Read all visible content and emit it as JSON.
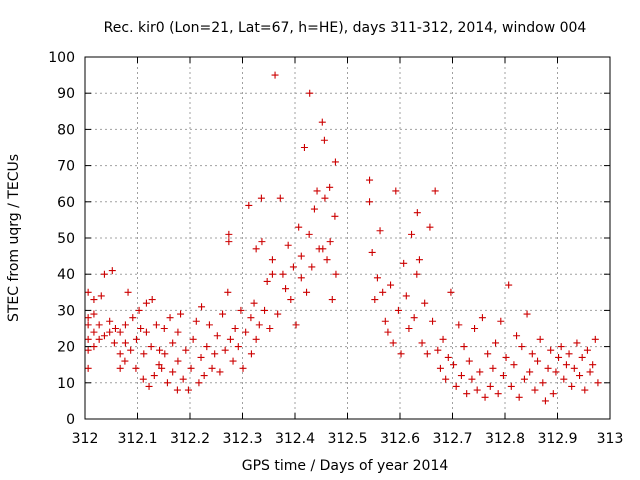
{
  "chart_data": {
    "type": "scatter",
    "title": "Rec. kir0 (Lon=21, Lat=67, h=HE), days 311-312, 2014, window 004",
    "xlabel": "GPS time / Days of year 2014",
    "ylabel": "STEC from uqrg / TECUs",
    "xlim": [
      312,
      313
    ],
    "ylim": [
      0,
      100
    ],
    "x_ticks": [
      312,
      312.1,
      312.2,
      312.3,
      312.4,
      312.5,
      312.6,
      312.7,
      312.8,
      312.9,
      313
    ],
    "x_tick_labels": [
      "312",
      "312.1",
      "312.2",
      "312.3",
      "312.4",
      "312.5",
      "312.6",
      "312.7",
      "312.8",
      "312.9",
      "313"
    ],
    "y_ticks": [
      0,
      10,
      20,
      30,
      40,
      50,
      60,
      70,
      80,
      90,
      100
    ],
    "y_tick_labels": [
      "0",
      "10",
      "20",
      "30",
      "40",
      "50",
      "60",
      "70",
      "80",
      "90",
      "100"
    ],
    "grid": true,
    "marker": "plus",
    "color": "#cc0000",
    "series": [
      {
        "points": [
          [
            312.006,
            14
          ],
          [
            312.006,
            19
          ],
          [
            312.006,
            22
          ],
          [
            312.006,
            26
          ],
          [
            312.006,
            28
          ],
          [
            312.006,
            35
          ],
          [
            312.017,
            20
          ],
          [
            312.017,
            24
          ],
          [
            312.017,
            29
          ],
          [
            312.017,
            33
          ],
          [
            312.027,
            22
          ],
          [
            312.027,
            26
          ],
          [
            312.031,
            34
          ],
          [
            312.037,
            23
          ],
          [
            312.037,
            40
          ],
          [
            312.047,
            24
          ],
          [
            312.047,
            27
          ],
          [
            312.052,
            41
          ],
          [
            312.056,
            21
          ],
          [
            312.058,
            25
          ],
          [
            312.067,
            14
          ],
          [
            312.067,
            18
          ],
          [
            312.067,
            24
          ],
          [
            312.076,
            16
          ],
          [
            312.077,
            21
          ],
          [
            312.077,
            26
          ],
          [
            312.082,
            35
          ],
          [
            312.087,
            19
          ],
          [
            312.091,
            28
          ],
          [
            312.097,
            14
          ],
          [
            312.098,
            22
          ],
          [
            312.103,
            30
          ],
          [
            312.106,
            25
          ],
          [
            312.111,
            11
          ],
          [
            312.112,
            18
          ],
          [
            312.117,
            24
          ],
          [
            312.117,
            32
          ],
          [
            312.122,
            9
          ],
          [
            312.126,
            20
          ],
          [
            312.128,
            33
          ],
          [
            312.132,
            12
          ],
          [
            312.136,
            26
          ],
          [
            312.141,
            15
          ],
          [
            312.142,
            19
          ],
          [
            312.146,
            14
          ],
          [
            312.151,
            25
          ],
          [
            312.152,
            18
          ],
          [
            312.157,
            10
          ],
          [
            312.162,
            28
          ],
          [
            312.167,
            13
          ],
          [
            312.167,
            21
          ],
          [
            312.176,
            8
          ],
          [
            312.177,
            16
          ],
          [
            312.177,
            24
          ],
          [
            312.182,
            29
          ],
          [
            312.187,
            11
          ],
          [
            312.192,
            19
          ],
          [
            312.197,
            8
          ],
          [
            312.202,
            14
          ],
          [
            312.206,
            22
          ],
          [
            312.212,
            27
          ],
          [
            312.217,
            10
          ],
          [
            312.221,
            17
          ],
          [
            312.222,
            31
          ],
          [
            312.227,
            12
          ],
          [
            312.232,
            20
          ],
          [
            312.237,
            26
          ],
          [
            312.242,
            14
          ],
          [
            312.247,
            18
          ],
          [
            312.252,
            23
          ],
          [
            312.257,
            13
          ],
          [
            312.262,
            29
          ],
          [
            312.267,
            19
          ],
          [
            312.272,
            35
          ],
          [
            312.274,
            49
          ],
          [
            312.274,
            51
          ],
          [
            312.277,
            22
          ],
          [
            312.282,
            16
          ],
          [
            312.286,
            25
          ],
          [
            312.292,
            20
          ],
          [
            312.297,
            30
          ],
          [
            312.301,
            14
          ],
          [
            312.306,
            24
          ],
          [
            312.312,
            59
          ],
          [
            312.316,
            28
          ],
          [
            312.317,
            18
          ],
          [
            312.322,
            32
          ],
          [
            312.326,
            47
          ],
          [
            312.326,
            22
          ],
          [
            312.332,
            26
          ],
          [
            312.336,
            61
          ],
          [
            312.337,
            49
          ],
          [
            312.342,
            30
          ],
          [
            312.347,
            38
          ],
          [
            312.352,
            25
          ],
          [
            312.357,
            44
          ],
          [
            312.357,
            40
          ],
          [
            312.362,
            95
          ],
          [
            312.367,
            29
          ],
          [
            312.372,
            61
          ],
          [
            312.377,
            40
          ],
          [
            312.382,
            36
          ],
          [
            312.387,
            48
          ],
          [
            312.392,
            33
          ],
          [
            312.397,
            42
          ],
          [
            312.402,
            26
          ],
          [
            312.407,
            53
          ],
          [
            312.412,
            45
          ],
          [
            312.412,
            39
          ],
          [
            312.418,
            75
          ],
          [
            312.422,
            35
          ],
          [
            312.427,
            51
          ],
          [
            312.428,
            90
          ],
          [
            312.432,
            42
          ],
          [
            312.437,
            58
          ],
          [
            312.442,
            63
          ],
          [
            312.446,
            47
          ],
          [
            312.452,
            82
          ],
          [
            312.453,
            47
          ],
          [
            312.456,
            77
          ],
          [
            312.457,
            61
          ],
          [
            312.461,
            44
          ],
          [
            312.466,
            64
          ],
          [
            312.467,
            49
          ],
          [
            312.471,
            33
          ],
          [
            312.476,
            56
          ],
          [
            312.477,
            71
          ],
          [
            312.478,
            40
          ],
          [
            312.542,
            66
          ],
          [
            312.542,
            60
          ],
          [
            312.547,
            46
          ],
          [
            312.552,
            33
          ],
          [
            312.557,
            39
          ],
          [
            312.562,
            52
          ],
          [
            312.567,
            35
          ],
          [
            312.572,
            27
          ],
          [
            312.577,
            24
          ],
          [
            312.582,
            37
          ],
          [
            312.587,
            21
          ],
          [
            312.592,
            63
          ],
          [
            312.597,
            30
          ],
          [
            312.602,
            18
          ],
          [
            312.607,
            43
          ],
          [
            312.612,
            34
          ],
          [
            312.617,
            25
          ],
          [
            312.622,
            51
          ],
          [
            312.627,
            28
          ],
          [
            312.632,
            40
          ],
          [
            312.633,
            57
          ],
          [
            312.637,
            44
          ],
          [
            312.642,
            21
          ],
          [
            312.647,
            32
          ],
          [
            312.652,
            18
          ],
          [
            312.657,
            53
          ],
          [
            312.662,
            27
          ],
          [
            312.667,
            63
          ],
          [
            312.672,
            19
          ],
          [
            312.677,
            14
          ],
          [
            312.682,
            22
          ],
          [
            312.687,
            11
          ],
          [
            312.692,
            17
          ],
          [
            312.697,
            35
          ],
          [
            312.702,
            15
          ],
          [
            312.707,
            9
          ],
          [
            312.712,
            26
          ],
          [
            312.717,
            12
          ],
          [
            312.722,
            20
          ],
          [
            312.727,
            7
          ],
          [
            312.732,
            16
          ],
          [
            312.737,
            11
          ],
          [
            312.742,
            25
          ],
          [
            312.747,
            8
          ],
          [
            312.752,
            13
          ],
          [
            312.757,
            28
          ],
          [
            312.762,
            6
          ],
          [
            312.767,
            18
          ],
          [
            312.772,
            9
          ],
          [
            312.777,
            14
          ],
          [
            312.782,
            21
          ],
          [
            312.787,
            7
          ],
          [
            312.792,
            27
          ],
          [
            312.797,
            12
          ],
          [
            312.802,
            17
          ],
          [
            312.807,
            37
          ],
          [
            312.812,
            9
          ],
          [
            312.817,
            15
          ],
          [
            312.822,
            23
          ],
          [
            312.827,
            6
          ],
          [
            312.832,
            20
          ],
          [
            312.837,
            11
          ],
          [
            312.842,
            29
          ],
          [
            312.847,
            13
          ],
          [
            312.852,
            18
          ],
          [
            312.857,
            8
          ],
          [
            312.862,
            16
          ],
          [
            312.867,
            22
          ],
          [
            312.872,
            10
          ],
          [
            312.877,
            5
          ],
          [
            312.882,
            14
          ],
          [
            312.887,
            19
          ],
          [
            312.892,
            7
          ],
          [
            312.897,
            13
          ],
          [
            312.902,
            17
          ],
          [
            312.907,
            20
          ],
          [
            312.912,
            11
          ],
          [
            312.917,
            15
          ],
          [
            312.922,
            18
          ],
          [
            312.927,
            9
          ],
          [
            312.932,
            14
          ],
          [
            312.937,
            21
          ],
          [
            312.942,
            12
          ],
          [
            312.947,
            17
          ],
          [
            312.952,
            8
          ],
          [
            312.957,
            19
          ],
          [
            312.962,
            13
          ],
          [
            312.967,
            15
          ],
          [
            312.972,
            22
          ],
          [
            312.977,
            10
          ]
        ]
      }
    ]
  }
}
